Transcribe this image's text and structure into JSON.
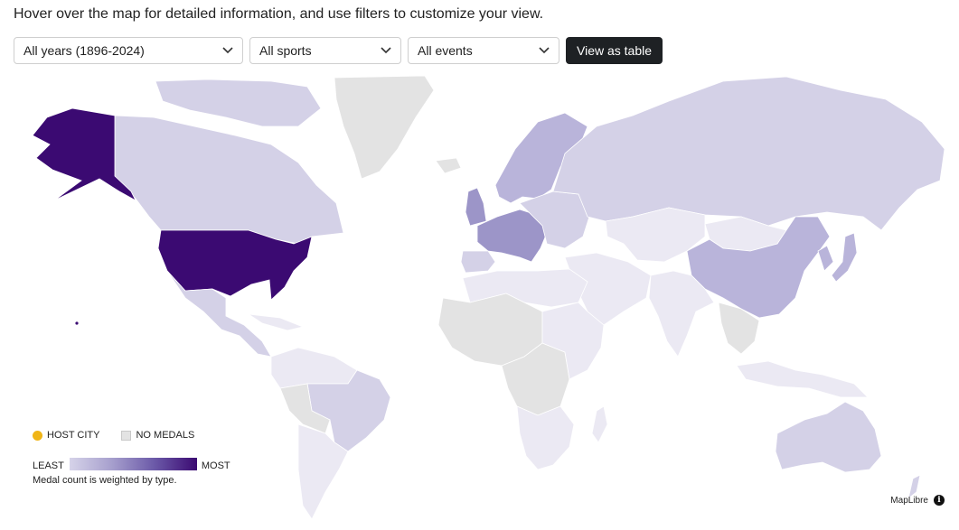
{
  "intro": "Hover over the map for detailed information, and use filters to customize your view.",
  "filters": {
    "years": "All years (1896-2024)",
    "sports": "All sports",
    "events": "All events",
    "view_table": "View as table"
  },
  "legend": {
    "host_city": "HOST CITY",
    "no_medals": "NO MEDALS",
    "least": "LEAST",
    "most": "MOST",
    "note": "Medal count is weighted by type."
  },
  "colors": {
    "most": "#3b0a72",
    "high": "#9c95c8",
    "mid": "#b9b4da",
    "low": "#d4d1e7",
    "lowest": "#ebe9f3",
    "no_medals": "#e3e3e3",
    "host": "#f0b517"
  },
  "attribution": "MapLibre"
}
